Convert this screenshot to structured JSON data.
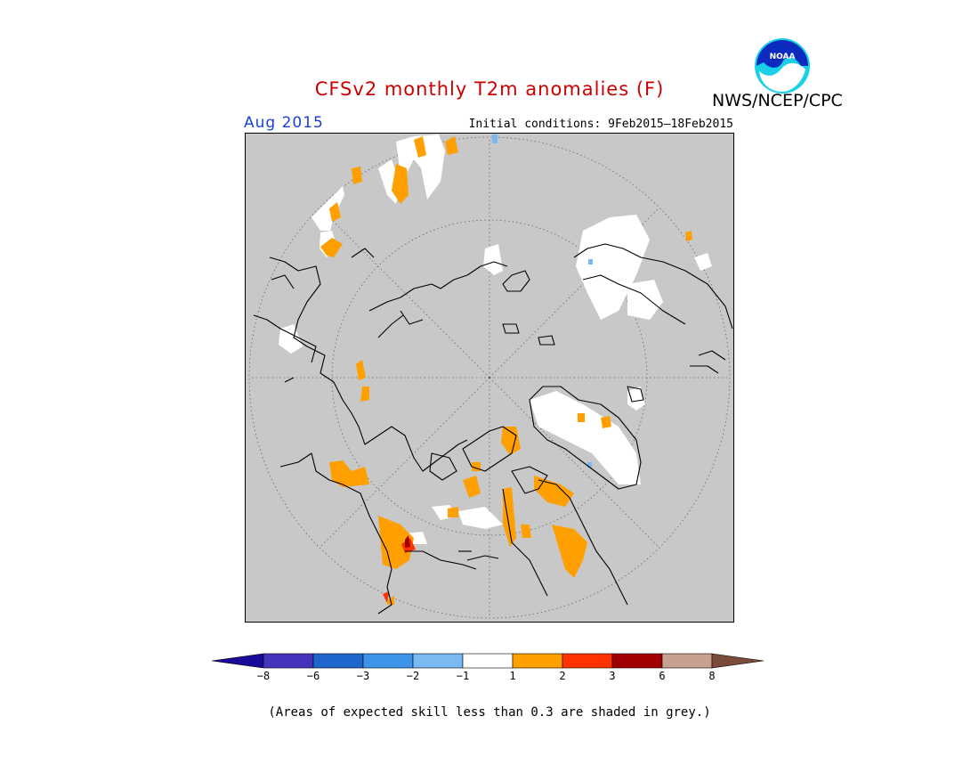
{
  "header": {
    "title": "CFSv2 monthly T2m anomalies (F)",
    "org": "NWS/NCEP/CPC",
    "period": "Aug 2015",
    "initial_conditions": "Initial conditions:  9Feb2015–18Feb2015",
    "logo_icon": "noaa-logo-icon"
  },
  "colors": {
    "title": "#cc0000",
    "period": "#1a3fd6",
    "skill_mask": "#c8c8c8",
    "coastline": "#000000"
  },
  "legend": {
    "bins": [
      {
        "from": -8,
        "to": -6,
        "color": "#4433bb"
      },
      {
        "from": -6,
        "to": -3,
        "color": "#1f66cc"
      },
      {
        "from": -3,
        "to": -2,
        "color": "#3d94e8"
      },
      {
        "from": -2,
        "to": -1,
        "color": "#7ab9f2"
      },
      {
        "from": -1,
        "to": 1,
        "color": "#ffffff"
      },
      {
        "from": 1,
        "to": 2,
        "color": "#ff9f00"
      },
      {
        "from": 2,
        "to": 3,
        "color": "#ff3300"
      },
      {
        "from": 3,
        "to": 6,
        "color": "#a00000"
      },
      {
        "from": 6,
        "to": 8,
        "color": "#c8a090"
      }
    ],
    "low_end_color": "#1a0a99",
    "high_end_color": "#7a4a3a",
    "tick_labels": [
      "−8",
      "−6",
      "−3",
      "−2",
      "−1",
      "1",
      "2",
      "3",
      "6",
      "8"
    ]
  },
  "footnote": "(Areas of expected skill less than 0.3 are shaded in grey.)"
}
